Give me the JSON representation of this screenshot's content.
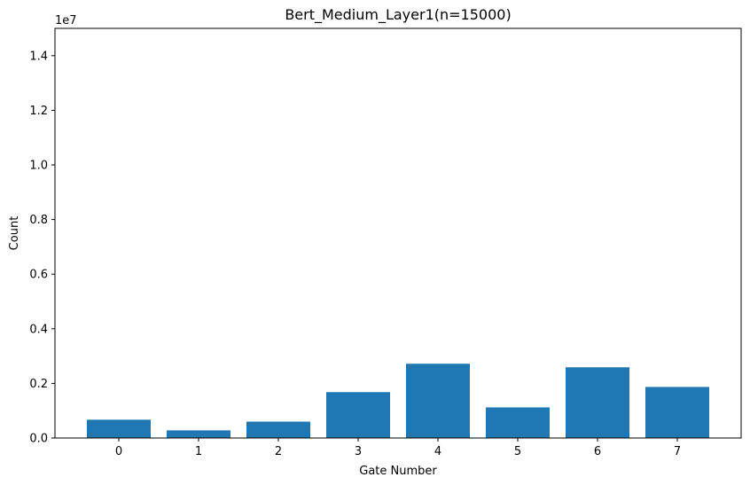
{
  "chart_data": {
    "type": "bar",
    "title": "Bert_Medium_Layer1(n=15000)",
    "xlabel": "Gate Number",
    "ylabel": "Count",
    "offset_label": "1e7",
    "categories": [
      "0",
      "1",
      "2",
      "3",
      "4",
      "5",
      "6",
      "7"
    ],
    "values": [
      670000,
      280000,
      600000,
      1680000,
      2720000,
      1120000,
      2590000,
      1870000
    ],
    "ylim": [
      0,
      15000000
    ],
    "yticks": [
      0,
      2000000,
      4000000,
      6000000,
      8000000,
      10000000,
      12000000,
      14000000
    ],
    "ytick_labels": [
      "0.0",
      "0.2",
      "0.4",
      "0.6",
      "0.8",
      "1.0",
      "1.2",
      "1.4"
    ],
    "bar_color": "#1f77b4",
    "grid": false,
    "legend": "none"
  }
}
